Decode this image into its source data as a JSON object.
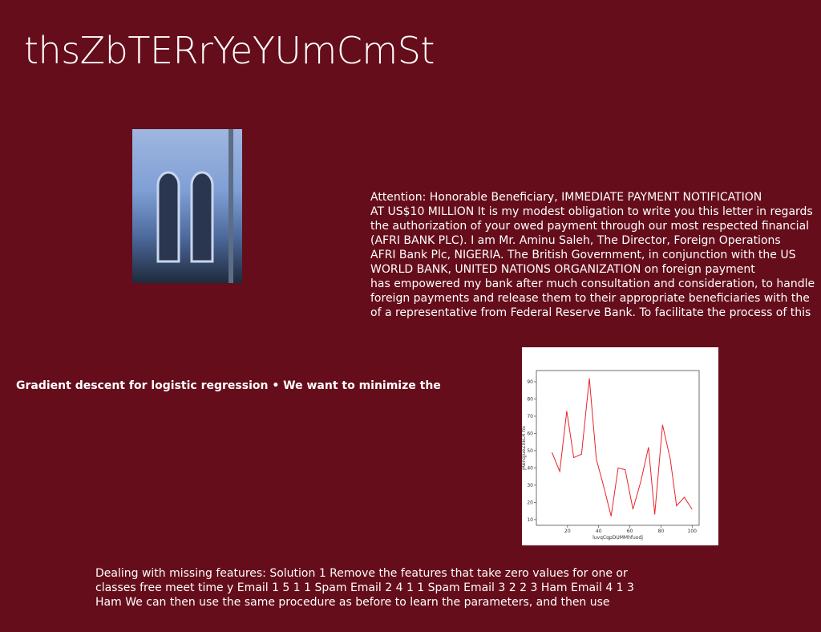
{
  "title": "thsZbTERrYeYUmCmSt",
  "letter": {
    "lines": [
      "Attention: Honorable Beneficiary, IMMEDIATE PAYMENT NOTIFICATION",
      "AT US$10 MILLION It is my modest obligation to write you this letter in regards",
      "the authorization of your owed payment through our most respected financial",
      "(AFRI BANK PLC). I am Mr. Aminu Saleh, The Director, Foreign Operations",
      "AFRI Bank Plc, NIGERIA. The British Government, in conjunction with the US",
      "WORLD BANK, UNITED NATIONS ORGANIZATION on foreign payment",
      "has empowered my bank after much consultation and consideration, to handle",
      "foreign payments and release them to their appropriate beneficiaries with the",
      "of a representative from Federal Reserve Bank. To facilitate the process of this"
    ]
  },
  "heading": "Gradient descent for logistic regression • We want to minimize the",
  "footer": {
    "lines": [
      "Dealing with missing features: Solution 1 Remove the features that take zero values for one or",
      "classes free meet time y Email 1 5 1 1 Spam Email 2 4 1 1 Spam Email 3 2 2 3 Ham Email 4 1 3",
      "Ham We can then use the same procedure as before to learn the parameters, and then use"
    ]
  },
  "chart_data": {
    "type": "line",
    "x_label": "luvqCqpDUMMhfuodj",
    "y_label": "jRenqJueZXkLR hS",
    "x": [
      10,
      15,
      19.5,
      24,
      29,
      34,
      38.5,
      43,
      48,
      52.5,
      57,
      62,
      67,
      72,
      76,
      81,
      86,
      90,
      95,
      100
    ],
    "series": [
      {
        "color": "#e8232a",
        "values": [
          49,
          38,
          73,
          46,
          48,
          92,
          45,
          30,
          12,
          40,
          39,
          16,
          32,
          52,
          13,
          65,
          45,
          18,
          23,
          16
        ]
      }
    ],
    "xlim": [
      0,
      104.5
    ],
    "ylim": [
      6.7,
      96.5
    ],
    "xticks": [
      20,
      40,
      60,
      80,
      100
    ],
    "yticks": [
      10,
      20,
      30,
      40,
      50,
      60,
      70,
      80,
      90
    ]
  }
}
